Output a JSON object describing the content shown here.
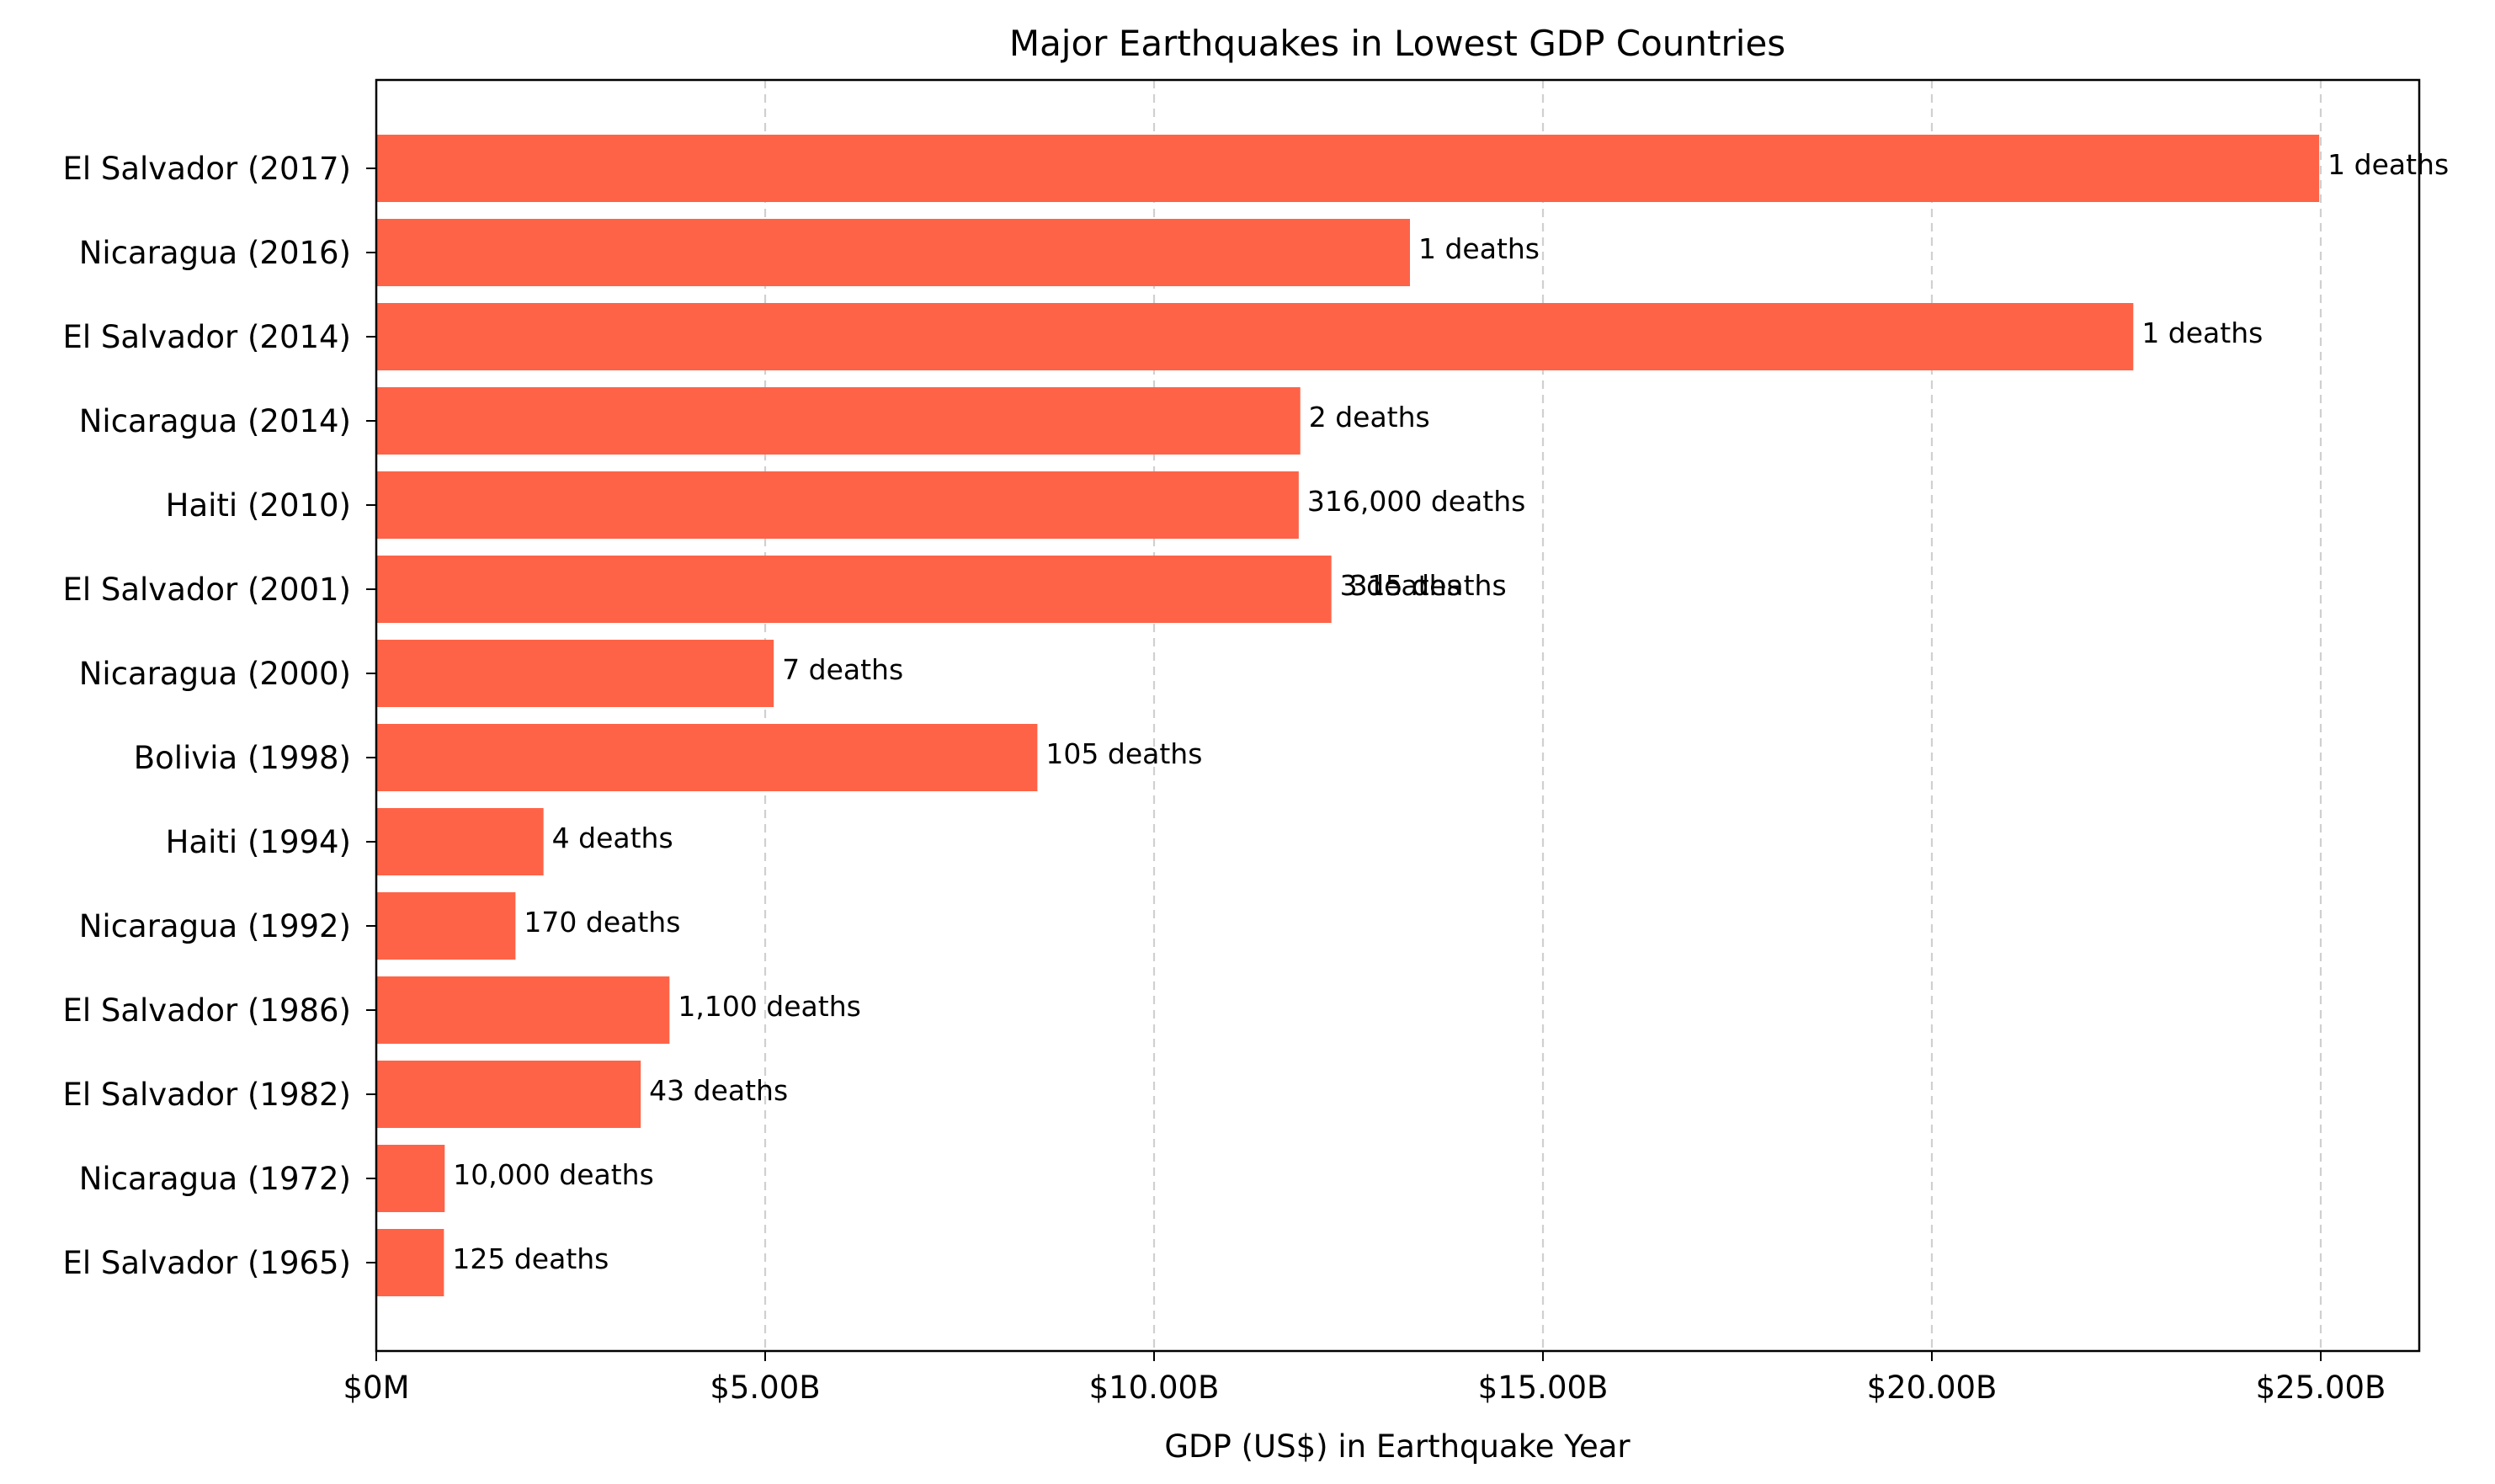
{
  "chart_data": {
    "type": "bar",
    "orientation": "horizontal",
    "title": "Major Earthquakes in Lowest GDP Countries",
    "xlabel": "GDP (US$) in Earthquake Year",
    "ylabel": "",
    "xlim": [
      0,
      26.25
    ],
    "x_unit": "billion US$",
    "x_ticks": [
      {
        "value": 0,
        "label": "$0M"
      },
      {
        "value": 5,
        "label": "$5.00B"
      },
      {
        "value": 10,
        "label": "$10.00B"
      },
      {
        "value": 15,
        "label": "$15.00B"
      },
      {
        "value": 20,
        "label": "$20.00B"
      },
      {
        "value": 25,
        "label": "$25.00B"
      }
    ],
    "grid": "vertical dashed lines at x ticks",
    "bar_color": "#ff6347",
    "categories": [
      "El Salvador (2017)",
      "Nicaragua (2016)",
      "El Salvador (2014)",
      "Nicaragua (2014)",
      "Haiti (2010)",
      "El Salvador (2001)",
      "Nicaragua (2000)",
      "Bolivia (1998)",
      "Haiti (1994)",
      "Nicaragua (1992)",
      "El Salvador (1986)",
      "El Salvador (1982)",
      "Nicaragua (1972)",
      "El Salvador (1965)"
    ],
    "values": [
      24.98,
      13.29,
      22.59,
      11.88,
      11.86,
      12.28,
      5.11,
      8.5,
      2.15,
      1.79,
      3.77,
      3.4,
      0.88,
      0.87
    ],
    "bar_labels": [
      [
        "1 deaths"
      ],
      [
        "1 deaths"
      ],
      [
        "1 deaths"
      ],
      [
        "2 deaths"
      ],
      [
        "316,000 deaths"
      ],
      [
        "3 deaths",
        "315 deaths"
      ],
      [
        "7 deaths"
      ],
      [
        "105 deaths"
      ],
      [
        "4 deaths"
      ],
      [
        "170 deaths"
      ],
      [
        "1,100 deaths"
      ],
      [
        "43 deaths"
      ],
      [
        "10,000 deaths"
      ],
      [
        "125 deaths"
      ]
    ]
  }
}
